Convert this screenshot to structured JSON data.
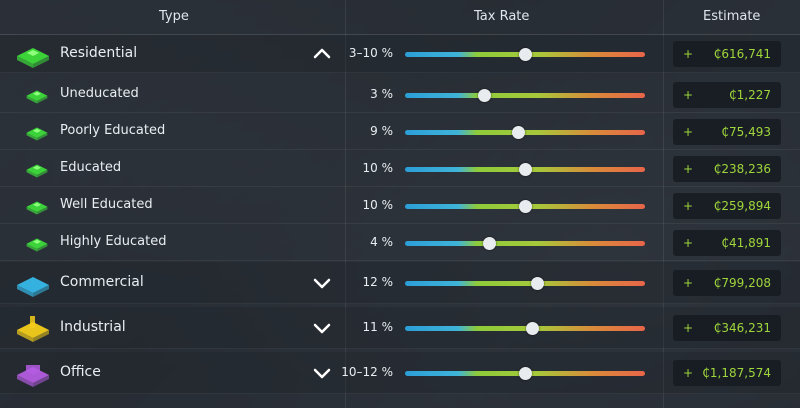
{
  "header": {
    "type_label": "Type",
    "tax_rate_label": "Tax Rate",
    "estimate_label": "Estimate"
  },
  "colors": {
    "residential": "#3ddc3a",
    "commercial": "#35b8e8",
    "industrial": "#f4cd1b",
    "office": "#b35ce0",
    "estimate_text": "#9fd63b"
  },
  "rows": [
    {
      "kind": "category",
      "label": "Residential",
      "icon": "residential-zone-icon",
      "color": "#3ddc3a",
      "expanded": true,
      "chevron": "chevron-up-icon",
      "rate": "3–10 %",
      "slider": 0.5,
      "sign": "+",
      "estimate": "₵616,741"
    },
    {
      "kind": "sub",
      "label": "Uneducated",
      "icon": "residential-zone-icon",
      "color": "#3ddc3a",
      "rate": "3 %",
      "slider": 0.33,
      "sign": "+",
      "estimate": "₵1,227"
    },
    {
      "kind": "sub",
      "label": "Poorly Educated",
      "icon": "residential-zone-icon",
      "color": "#3ddc3a",
      "rate": "9 %",
      "slider": 0.47,
      "sign": "+",
      "estimate": "₵75,493"
    },
    {
      "kind": "sub",
      "label": "Educated",
      "icon": "residential-zone-icon",
      "color": "#3ddc3a",
      "rate": "10 %",
      "slider": 0.5,
      "sign": "+",
      "estimate": "₵238,236"
    },
    {
      "kind": "sub",
      "label": "Well Educated",
      "icon": "residential-zone-icon",
      "color": "#3ddc3a",
      "rate": "10 %",
      "slider": 0.5,
      "sign": "+",
      "estimate": "₵259,894"
    },
    {
      "kind": "sub",
      "label": "Highly Educated",
      "icon": "residential-zone-icon",
      "color": "#3ddc3a",
      "rate": "4 %",
      "slider": 0.35,
      "sign": "+",
      "estimate": "₵41,891"
    },
    {
      "kind": "category",
      "label": "Commercial",
      "icon": "commercial-zone-icon",
      "color": "#35b8e8",
      "expanded": false,
      "chevron": "chevron-down-icon",
      "rate": "12 %",
      "slider": 0.55,
      "sign": "+",
      "estimate": "₵799,208"
    },
    {
      "kind": "category",
      "label": "Industrial",
      "icon": "industrial-zone-icon",
      "color": "#f4cd1b",
      "expanded": false,
      "chevron": "chevron-down-icon",
      "rate": "11 %",
      "slider": 0.53,
      "sign": "+",
      "estimate": "₵346,231"
    },
    {
      "kind": "category",
      "label": "Office",
      "icon": "office-zone-icon",
      "color": "#b35ce0",
      "expanded": false,
      "chevron": "chevron-down-icon",
      "rate": "10–12 %",
      "slider": 0.5,
      "sign": "+",
      "estimate": "₵1,187,574"
    }
  ]
}
